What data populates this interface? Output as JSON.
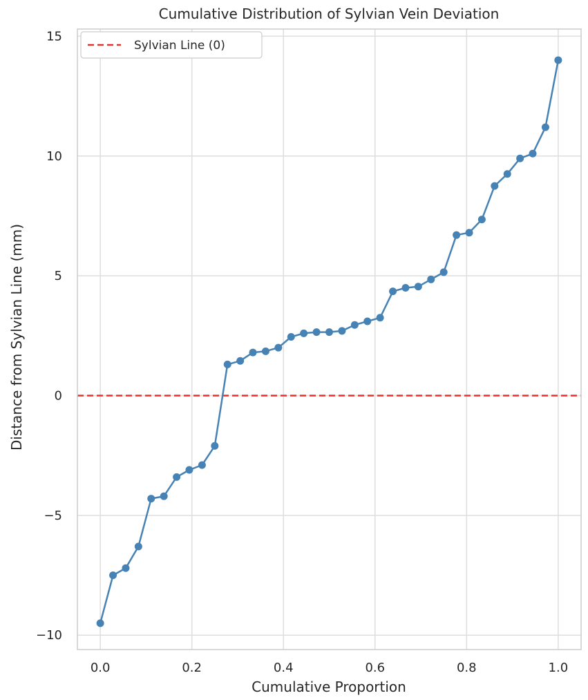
{
  "chart_data": {
    "type": "line",
    "title": "Cumulative Distribution of Sylvian Vein Deviation",
    "xlabel": "Cumulative Proportion",
    "ylabel": "Distance from Sylvian Line (mm)",
    "xlim": [
      -0.05,
      1.05
    ],
    "ylim": [
      -10.6,
      15.3
    ],
    "xticks": [
      0.0,
      0.2,
      0.4,
      0.6,
      0.8,
      1.0
    ],
    "xtick_labels": [
      "0.0",
      "0.2",
      "0.4",
      "0.6",
      "0.8",
      "1.0"
    ],
    "yticks": [
      -10,
      -5,
      0,
      5,
      10,
      15
    ],
    "ytick_labels": [
      "−10",
      "−5",
      "0",
      "5",
      "10",
      "15"
    ],
    "grid": true,
    "legend": {
      "placement": "top-left",
      "entries": [
        "Sylvian Line (0)"
      ]
    },
    "series": [
      {
        "color": "#4682b4",
        "marker": "circle",
        "x": [
          0.0,
          0.0278,
          0.0556,
          0.0833,
          0.1111,
          0.1389,
          0.1667,
          0.1944,
          0.2222,
          0.25,
          0.2778,
          0.3056,
          0.3333,
          0.3611,
          0.3889,
          0.4167,
          0.4444,
          0.4722,
          0.5,
          0.5278,
          0.5556,
          0.5833,
          0.6111,
          0.6389,
          0.6667,
          0.6944,
          0.7222,
          0.75,
          0.7778,
          0.8056,
          0.8333,
          0.8611,
          0.8889,
          0.9167,
          0.9444,
          0.9722,
          1.0
        ],
        "y": [
          -9.5,
          -7.5,
          -7.2,
          -6.3,
          -4.3,
          -4.2,
          -3.4,
          -3.1,
          -2.9,
          -2.1,
          1.3,
          1.45,
          1.8,
          1.85,
          2.0,
          2.45,
          2.6,
          2.65,
          2.65,
          2.7,
          2.95,
          3.1,
          3.25,
          4.35,
          4.5,
          4.55,
          4.85,
          5.15,
          6.7,
          6.8,
          7.35,
          8.75,
          9.25,
          9.9,
          10.1,
          11.2,
          14.0
        ]
      }
    ],
    "reference_line": {
      "name": "Sylvian Line (0)",
      "y": 0,
      "color": "#e8302a",
      "style": "dashed"
    }
  }
}
